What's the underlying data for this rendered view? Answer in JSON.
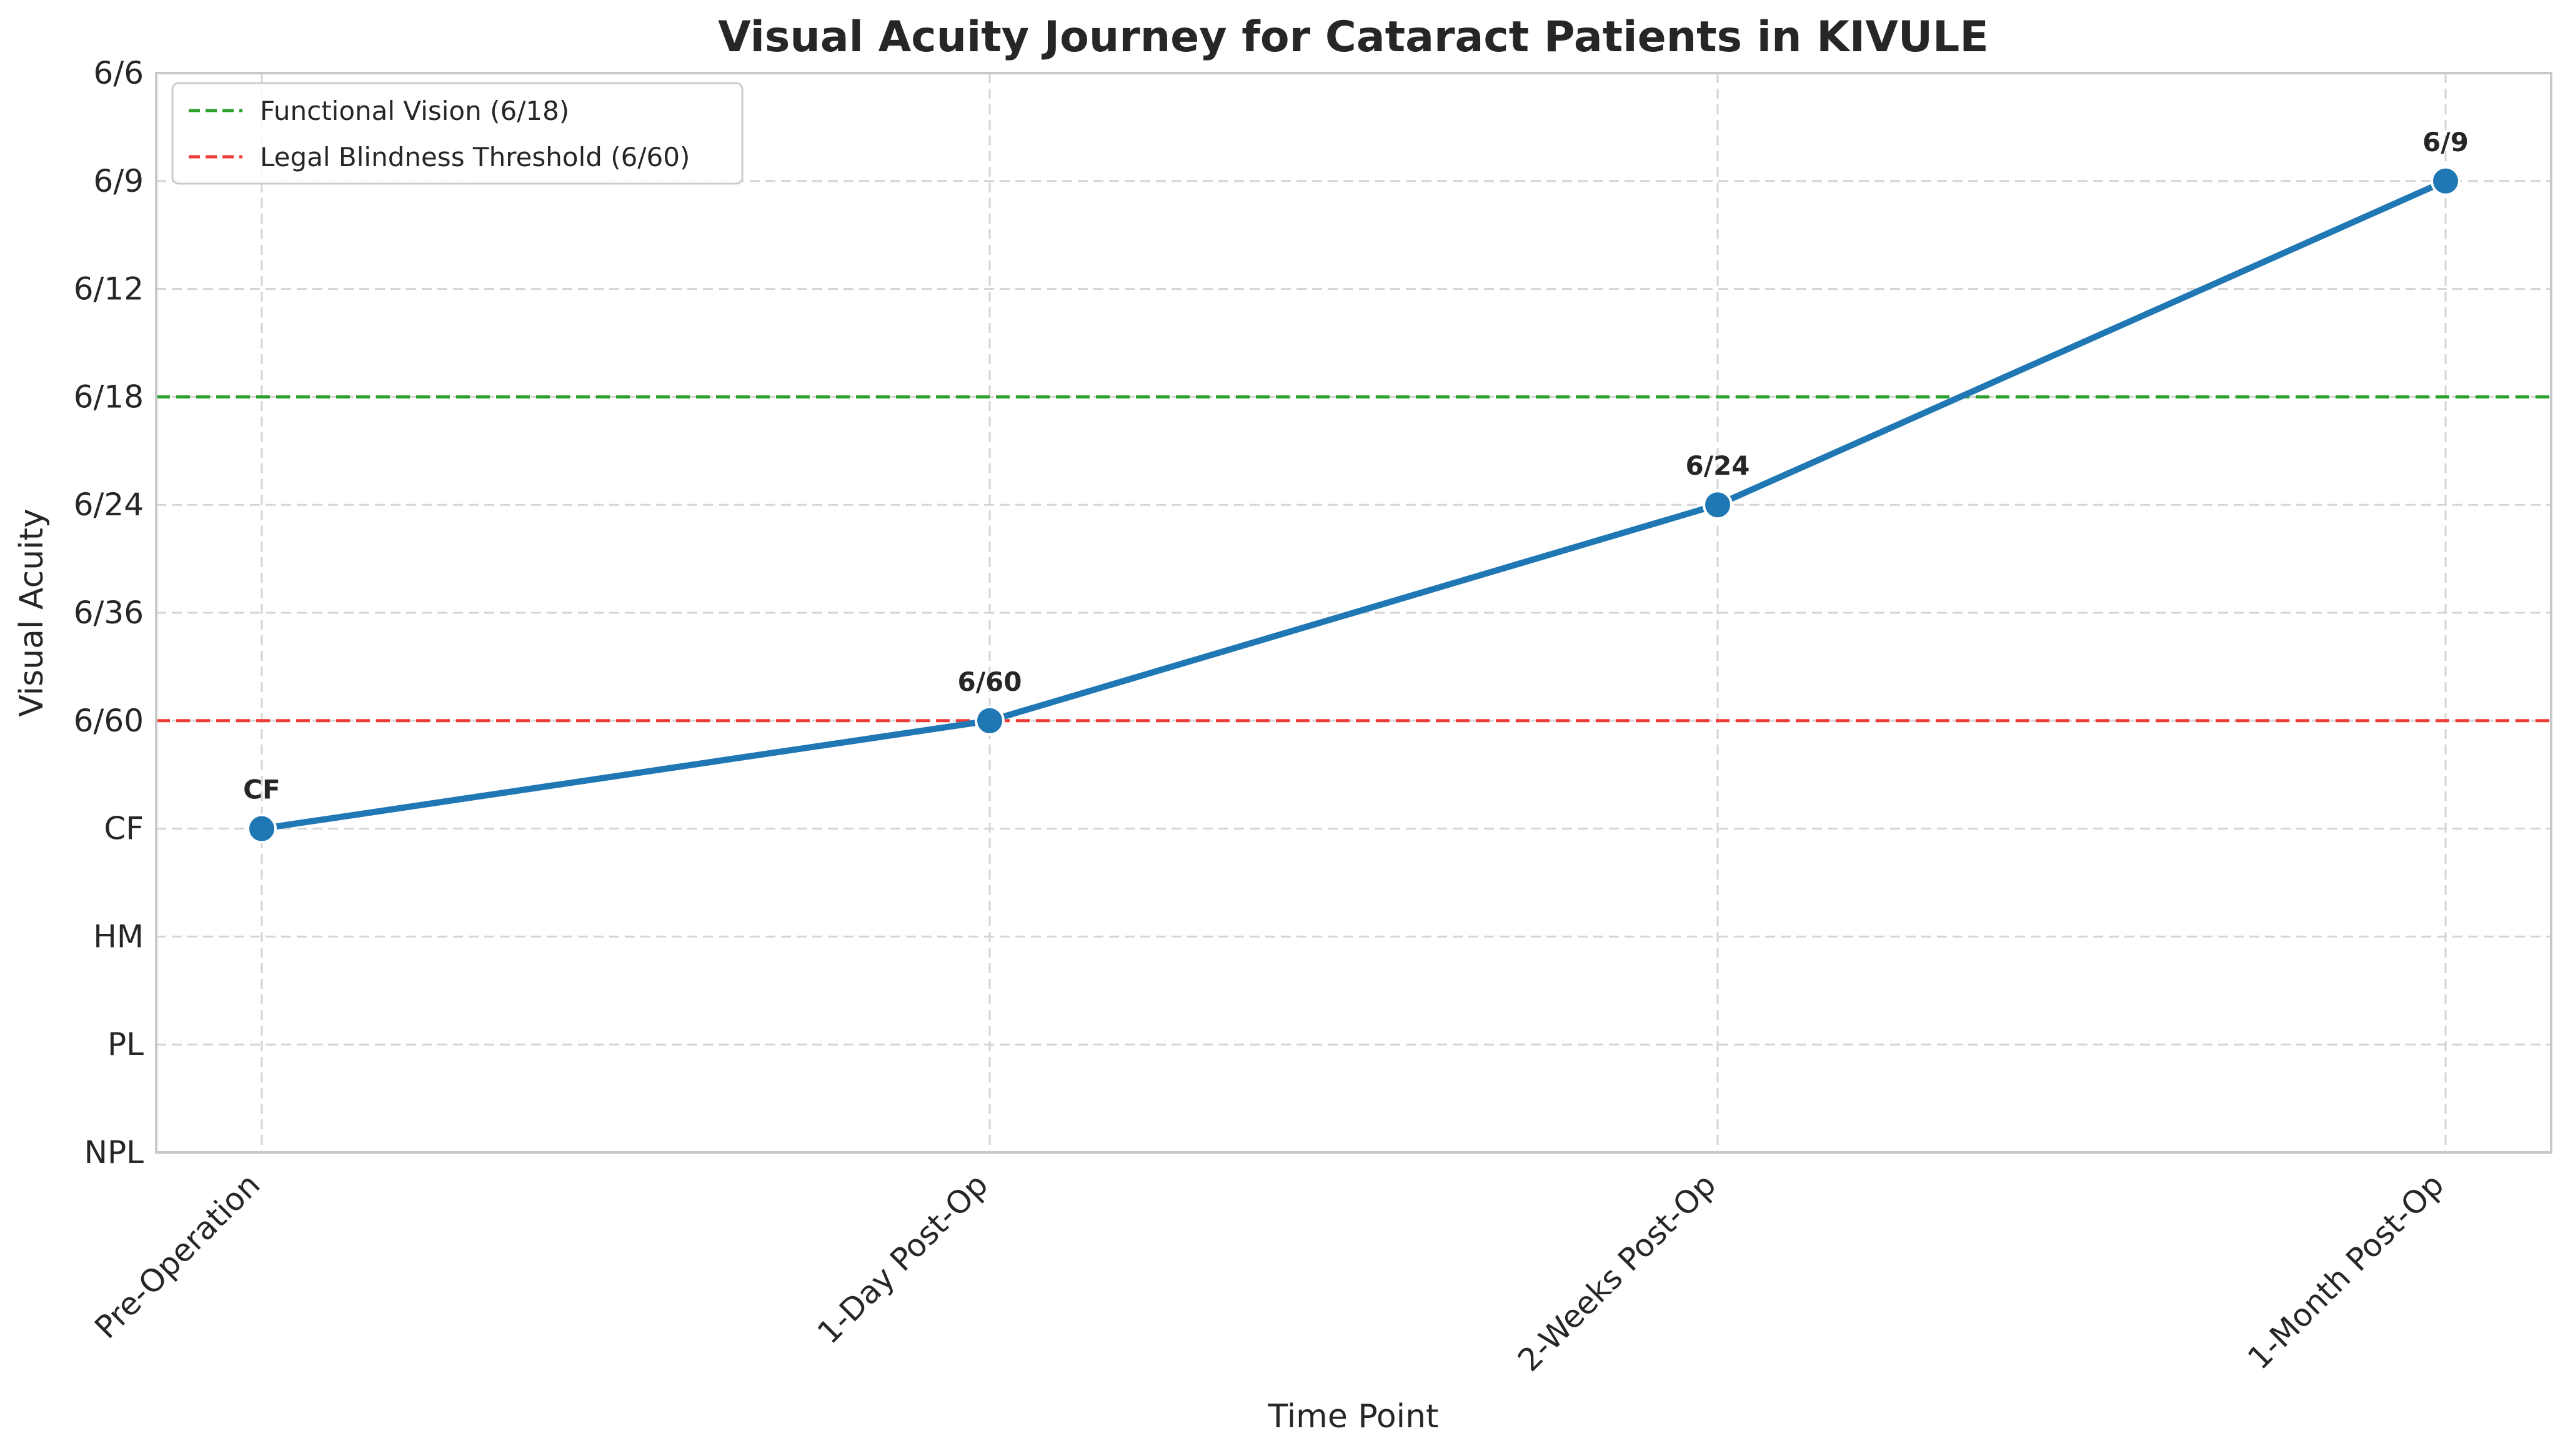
{
  "chart_data": {
    "type": "line",
    "title": "Visual Acuity Journey for Cataract Patients in KIVULE",
    "xlabel": "Time Point",
    "ylabel": "Visual Acuity",
    "categories": [
      "Pre-Operation",
      "1-Day Post-Op",
      "2-Weeks Post-Op",
      "1-Month Post-Op"
    ],
    "y_ticks": [
      "NPL",
      "PL",
      "HM",
      "CF",
      "6/60",
      "6/36",
      "6/24",
      "6/18",
      "6/12",
      "6/9",
      "6/6"
    ],
    "series": [
      {
        "values": [
          "CF",
          "6/60",
          "6/24",
          "6/9"
        ],
        "color": "#1f77b4"
      }
    ],
    "point_labels": [
      "CF",
      "6/60",
      "6/24",
      "6/9"
    ],
    "reference_lines": [
      {
        "label": "Functional Vision (6/18)",
        "value": "6/18",
        "color": "#2ca02c",
        "style": "dashed"
      },
      {
        "label": "Legal Blindness Threshold (6/60)",
        "value": "6/60",
        "color": "#ef3b36",
        "style": "dashed"
      }
    ],
    "legend_position": "top-left",
    "grid": true
  }
}
